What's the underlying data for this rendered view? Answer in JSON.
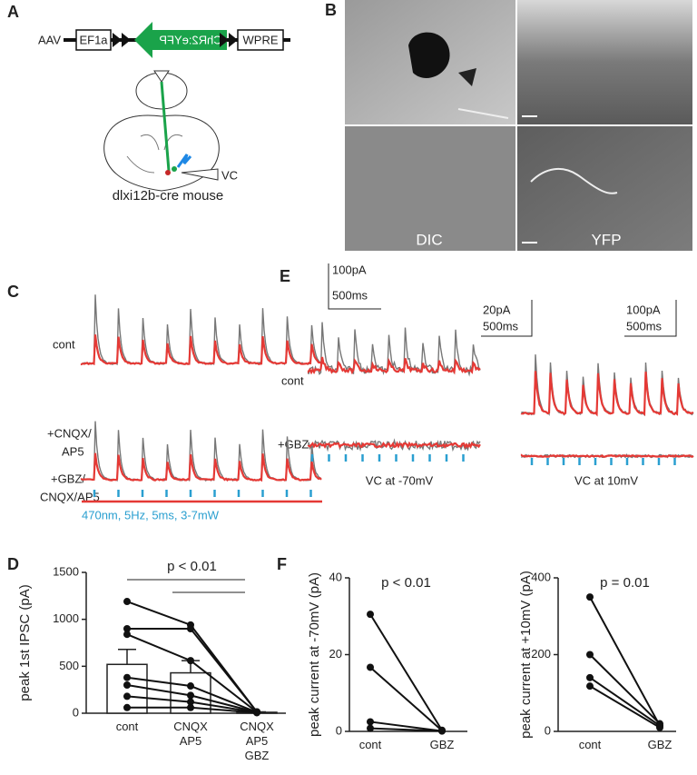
{
  "panels": {
    "a": {
      "letter": "A",
      "vector": "AAV",
      "promoter": "EF1a",
      "gene": "ChR2:eYFP",
      "element": "WPRE",
      "recording": "VC",
      "mouse": "dlxi12b-cre mouse"
    },
    "b": {
      "letter": "B",
      "left_label": "DIC",
      "right_label": "YFP"
    },
    "c": {
      "letter": "C",
      "scale_current": "100pA",
      "scale_time": "500ms",
      "cont": "cont",
      "cnqx_1": "+CNQX/",
      "cnqx_2": "AP5",
      "gbz_1": "+GBZ/",
      "gbz_2": "CNQX/AP5",
      "stimulus": "470nm, 5Hz, 5ms, 3-7mW"
    },
    "e": {
      "letter": "E",
      "scale_current_left": "20pA",
      "scale_time_left": "500ms",
      "scale_current_right": "100pA",
      "scale_time_right": "500ms",
      "cont": "cont",
      "gbz": "+GBZ",
      "left_caption": "VC at -70mV",
      "right_caption": "VC at 10mV"
    },
    "d": {
      "letter": "D"
    },
    "f": {
      "letter": "F"
    }
  },
  "chart_data": [
    {
      "type": "bar",
      "y_label": "peak 1st IPSC (pA)",
      "annotation": "p < 0.01",
      "categories": [
        "cont",
        "CNQX\nAP5",
        "CNQX\nAP5\nGBZ"
      ],
      "values": [
        520,
        430,
        10
      ],
      "errors": [
        160,
        130,
        5
      ],
      "ylim": [
        0,
        1500
      ],
      "yticks": [
        0,
        500,
        1000,
        1500
      ],
      "series": [
        {
          "values": [
            1190,
            940,
            15
          ]
        },
        {
          "values": [
            900,
            900,
            15
          ]
        },
        {
          "values": [
            840,
            560,
            12
          ]
        },
        {
          "values": [
            380,
            290,
            10
          ]
        },
        {
          "values": [
            300,
            190,
            10
          ]
        },
        {
          "values": [
            180,
            120,
            8
          ]
        },
        {
          "values": [
            60,
            60,
            5
          ]
        }
      ]
    },
    {
      "type": "line",
      "y_label": "peak current at -70mV (pA)",
      "annotation": "p < 0.01",
      "categories": [
        "cont",
        "GBZ"
      ],
      "ylim": [
        0,
        40
      ],
      "yticks": [
        0,
        20,
        40
      ],
      "series": [
        {
          "values": [
            30.5,
            0.3
          ]
        },
        {
          "values": [
            16.7,
            0.2
          ]
        },
        {
          "values": [
            2.5,
            0.1
          ]
        },
        {
          "values": [
            0.8,
            0.1
          ]
        }
      ]
    },
    {
      "type": "line",
      "y_label": "peak current at +10mV (pA)",
      "annotation": "p = 0.01",
      "categories": [
        "cont",
        "GBZ"
      ],
      "ylim": [
        0,
        400
      ],
      "yticks": [
        0,
        200,
        400
      ],
      "series": [
        {
          "values": [
            350,
            15
          ]
        },
        {
          "values": [
            200,
            20
          ]
        },
        {
          "values": [
            140,
            15
          ]
        },
        {
          "values": [
            118,
            10
          ]
        }
      ]
    }
  ]
}
